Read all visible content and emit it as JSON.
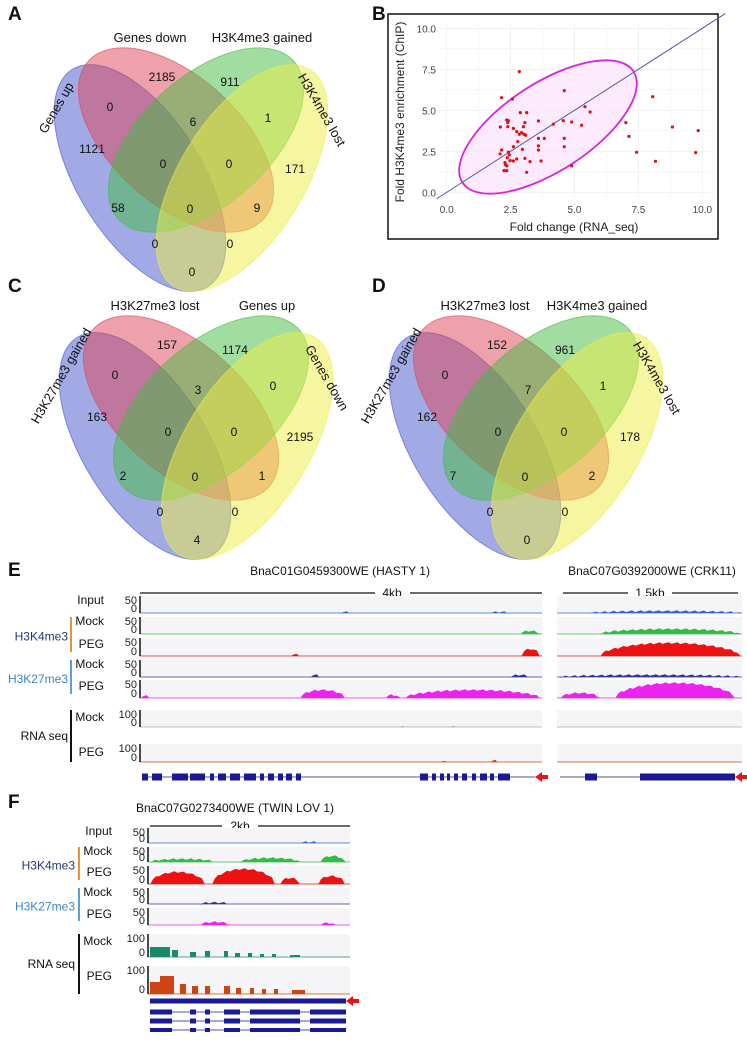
{
  "panels": {
    "A": {
      "letter": "A",
      "labels": [
        "Genes down",
        "H3K4me3 gained",
        "Genes up",
        "H3K4me3 lost"
      ],
      "counts": [
        2185,
        911,
        1121,
        171,
        0,
        6,
        1,
        0,
        0,
        58,
        0,
        9,
        0,
        0,
        0
      ]
    },
    "B": {
      "letter": "B"
    },
    "C": {
      "letter": "C",
      "labels": [
        "H3K27me3 lost",
        "Genes up",
        "H3K27me3 gained",
        "Genes down"
      ],
      "counts": [
        157,
        1174,
        163,
        2195,
        0,
        3,
        0,
        0,
        0,
        2,
        0,
        1,
        0,
        0,
        4
      ]
    },
    "D": {
      "letter": "D",
      "labels": [
        "H3K27me3 lost",
        "H3K4me3 gained",
        "H3K27me3 gained",
        "H3K4me3 lost"
      ],
      "counts": [
        152,
        961,
        162,
        178,
        0,
        7,
        1,
        0,
        0,
        7,
        0,
        2,
        0,
        0,
        0
      ]
    },
    "E": {
      "letter": "E",
      "gene1": "BnaC01G0459300WE (HASTY 1)",
      "scale1": "4kb",
      "gene2": "BnaC07G0392000WE (CRK11)",
      "scale2": "1.5kb"
    },
    "F": {
      "letter": "F",
      "gene": "BnaC07G0273400WE (TWIN LOV 1)",
      "scale": "2kb"
    }
  },
  "tracks": {
    "input": "Input",
    "h3k4me3": "H3K4me3",
    "h3k27me3": "H3K27me3",
    "rnaseq": "RNA seq",
    "mock": "Mock",
    "peg": "PEG",
    "chip_max": "50",
    "rna_max": "100",
    "zero": "0"
  },
  "colors": {
    "venn": [
      "#4455cc",
      "#dd4455",
      "#44bb44",
      "#eeee44"
    ],
    "h3k4me3_bar": "#e8903a",
    "h3k27me3_bar": "#5aa0d8",
    "h3k4me3_label": "#1f3a7a",
    "h3k27me3_label": "#3a86c8",
    "input": "#3366cc",
    "k4_mock": "#33bb44",
    "k4_peg": "#ee1111",
    "k27_mock": "#333399",
    "k27_peg": "#ee22ee",
    "rna_mock": "#1a8a6a",
    "rna_peg": "#cc4411",
    "gene_model": "#1a1a99",
    "strand_arrow": "#ee1111",
    "scatter_point": "#dd1111",
    "ellipse": "#dd22dd"
  },
  "chart_data": {
    "type": "scatter",
    "xlabel": "Fold change (RNA_seq)",
    "ylabel": "Fold H3K4me3 enrichment (ChIP)",
    "xlim": [
      0,
      10.5
    ],
    "ylim": [
      0,
      10.5
    ],
    "xticks": [
      "0.0",
      "2.5",
      "5.0",
      "7.5",
      "10.0"
    ],
    "yticks": [
      "0.0",
      "2.5",
      "5.0",
      "7.5",
      "10.0"
    ],
    "grid": true,
    "reference_line": "y = x",
    "points": [
      [
        2.84,
        7.36
      ],
      [
        2.15,
        5.77
      ],
      [
        2.57,
        5.69
      ],
      [
        4.6,
        6.2
      ],
      [
        5.41,
        5.22
      ],
      [
        5.61,
        4.9
      ],
      [
        2.88,
        4.86
      ],
      [
        3.13,
        4.86
      ],
      [
        2.35,
        4.41
      ],
      [
        2.41,
        4.37
      ],
      [
        2.39,
        4.25
      ],
      [
        2.1,
        3.98
      ],
      [
        2.39,
        4.0
      ],
      [
        2.61,
        3.9
      ],
      [
        3.06,
        4.25
      ],
      [
        3.0,
        4.0
      ],
      [
        3.59,
        4.35
      ],
      [
        4.17,
        4.15
      ],
      [
        4.56,
        4.37
      ],
      [
        4.89,
        4.29
      ],
      [
        5.28,
        4.09
      ],
      [
        2.74,
        3.7
      ],
      [
        2.84,
        3.54
      ],
      [
        2.93,
        3.64
      ],
      [
        3.02,
        3.54
      ],
      [
        3.09,
        3.48
      ],
      [
        3.59,
        3.29
      ],
      [
        3.82,
        3.29
      ],
      [
        4.6,
        3.29
      ],
      [
        2.78,
        3.09
      ],
      [
        2.61,
        2.78
      ],
      [
        3.59,
        2.83
      ],
      [
        4.6,
        2.78
      ],
      [
        2.15,
        2.58
      ],
      [
        2.96,
        2.62
      ],
      [
        3.59,
        2.58
      ],
      [
        2.09,
        2.34
      ],
      [
        2.41,
        2.44
      ],
      [
        2.45,
        2.28
      ],
      [
        2.37,
        2.11
      ],
      [
        3.06,
        2.07
      ],
      [
        2.74,
        2.03
      ],
      [
        2.48,
        1.93
      ],
      [
        2.61,
        1.91
      ],
      [
        3.26,
        1.87
      ],
      [
        3.69,
        1.91
      ],
      [
        2.28,
        1.81
      ],
      [
        2.3,
        1.69
      ],
      [
        2.35,
        1.61
      ],
      [
        4.89,
        1.61
      ],
      [
        2.24,
        1.32
      ],
      [
        2.35,
        1.32
      ],
      [
        3.13,
        1.22
      ],
      [
        7.01,
        4.25
      ],
      [
        7.13,
        3.41
      ],
      [
        7.43,
        2.44
      ],
      [
        8.06,
        5.83
      ],
      [
        8.17,
        1.89
      ],
      [
        8.83,
        3.98
      ],
      [
        9.84,
        3.76
      ],
      [
        9.74,
        2.42
      ]
    ]
  }
}
